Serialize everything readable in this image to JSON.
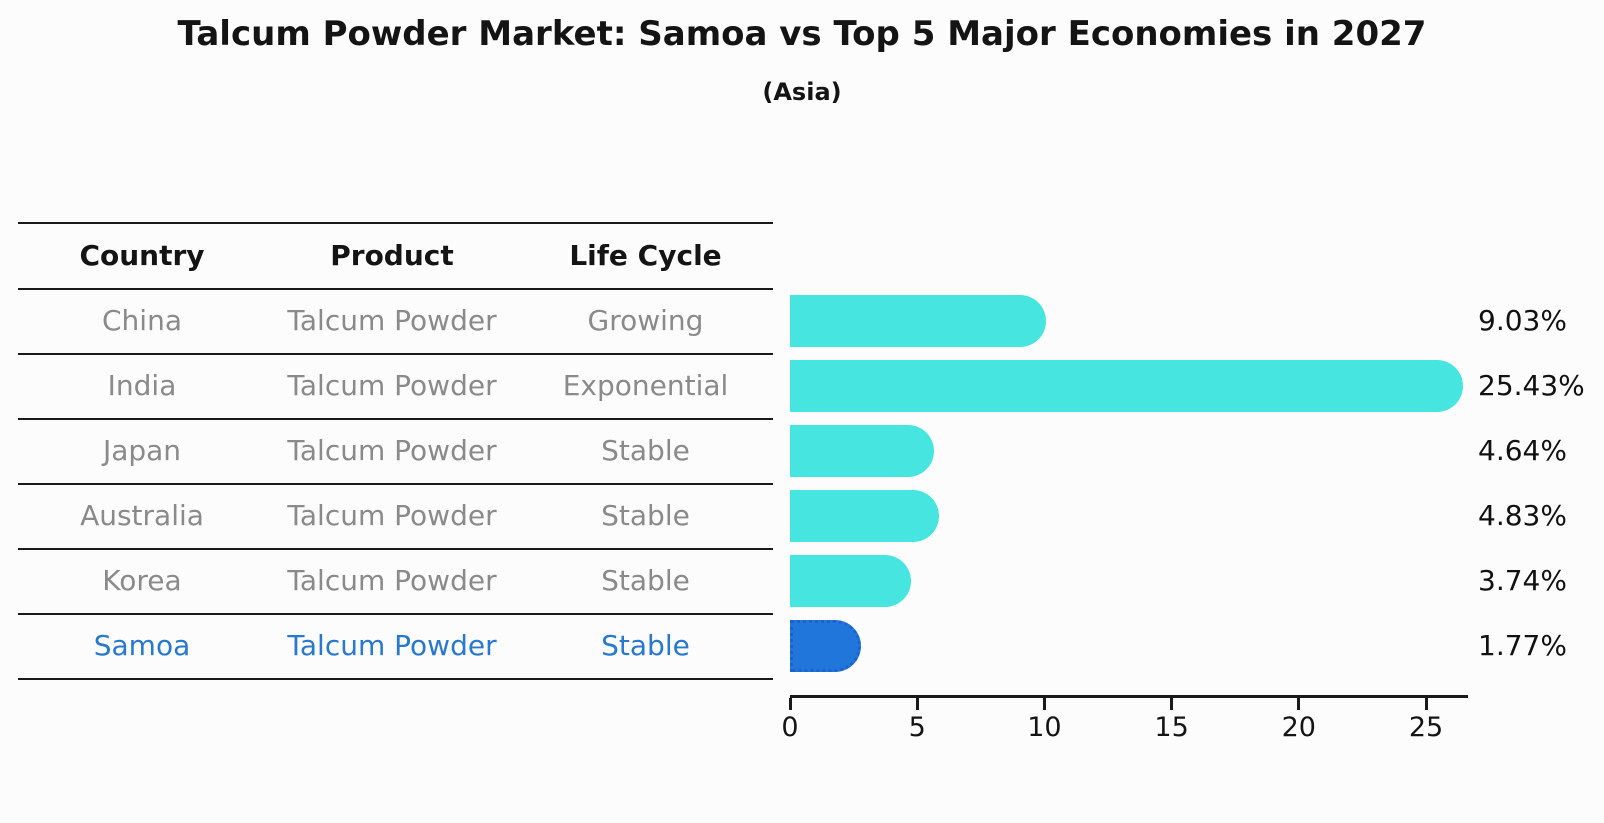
{
  "header": {
    "title": "Talcum Powder Market: Samoa vs Top 5 Major Economies in 2027",
    "subtitle": "(Asia)"
  },
  "table": {
    "columns": [
      "Country",
      "Product",
      "Life Cycle"
    ]
  },
  "rows": [
    {
      "country": "China",
      "product": "Talcum Powder",
      "life_cycle": "Growing",
      "value": 9.03,
      "value_label": "9.03%",
      "highlight": false
    },
    {
      "country": "India",
      "product": "Talcum Powder",
      "life_cycle": "Exponential",
      "value": 25.43,
      "value_label": "25.43%",
      "highlight": false
    },
    {
      "country": "Japan",
      "product": "Talcum Powder",
      "life_cycle": "Stable",
      "value": 4.64,
      "value_label": "4.64%",
      "highlight": false
    },
    {
      "country": "Australia",
      "product": "Talcum Powder",
      "life_cycle": "Stable",
      "value": 4.83,
      "value_label": "4.83%",
      "highlight": false
    },
    {
      "country": "Korea",
      "product": "Talcum Powder",
      "life_cycle": "Stable",
      "value": 3.74,
      "value_label": "3.74%",
      "highlight": false
    },
    {
      "country": "Samoa",
      "product": "Talcum Powder",
      "life_cycle": "Stable",
      "value": 1.77,
      "value_label": "1.77%",
      "highlight": true
    }
  ],
  "chart_data": {
    "type": "bar",
    "orientation": "horizontal",
    "title": "Talcum Powder Market: Samoa vs Top 5 Major Economies in 2027",
    "subtitle": "(Asia)",
    "categories": [
      "China",
      "India",
      "Japan",
      "Australia",
      "Korea",
      "Samoa"
    ],
    "values": [
      9.03,
      25.43,
      4.64,
      4.83,
      3.74,
      1.77
    ],
    "value_labels": [
      "9.03%",
      "25.43%",
      "4.64%",
      "4.83%",
      "3.74%",
      "1.77%"
    ],
    "xlabel": "",
    "ylabel": "",
    "x_ticks": [
      0,
      5,
      10,
      15,
      20,
      25
    ],
    "xlim": [
      0,
      26.6
    ],
    "grid": false,
    "legend": false,
    "bar_color": "#46e5e0",
    "highlight_color": "#2176db",
    "highlight_index": 5
  },
  "colors": {
    "bar_cyan": "#46e5e0",
    "bar_blue": "#2176db",
    "highlight_text": "#2878cd",
    "table_text": "#8a8a8a",
    "heading_text": "#141414"
  }
}
